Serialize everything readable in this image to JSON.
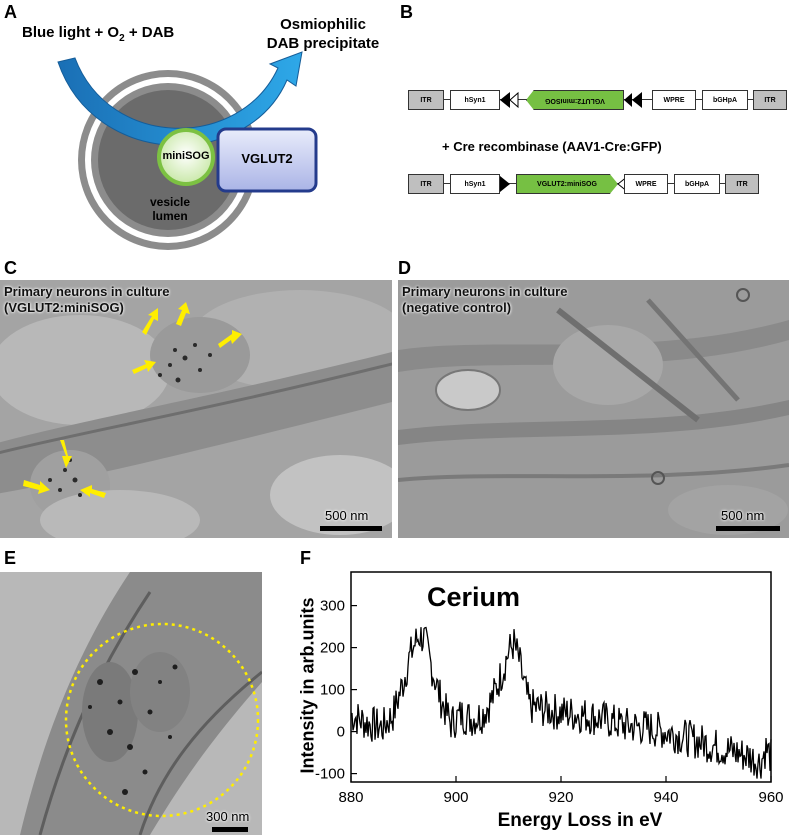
{
  "panel_labels": [
    "A",
    "B",
    "C",
    "D",
    "E",
    "F"
  ],
  "panel_a": {
    "blue_light_text": "Blue light + O",
    "o2_subscript": "2",
    "dab_text": " + DAB",
    "osmio_line1": "Osmiophilic",
    "osmio_line2": "DAB precipitate",
    "minisog": "miniSOG",
    "vglut2": "VGLUT2",
    "vesicle_line1": "vesicle",
    "vesicle_line2": "lumen"
  },
  "panel_b": {
    "construct1": [
      "ITR",
      "hSyn1",
      "VGLUT2:miniSOG",
      "WPRE",
      "bGHpA",
      "ITR"
    ],
    "cre_text": "+ Cre recombinase (AAV1-Cre:GFP)",
    "construct2": [
      "ITR",
      "hSyn1",
      "VGLUT2:miniSOG",
      "WPRE",
      "bGHpA",
      "ITR"
    ],
    "colors": {
      "minisog_green": "#76c043",
      "itr_grey": "#bfbfbf"
    }
  },
  "panel_c": {
    "caption_line1": "Primary neurons in culture",
    "caption_line2": "(VGLUT2:miniSOG)",
    "scalebar": "500 nm",
    "arrow_color": "#ffee00"
  },
  "panel_d": {
    "caption_line1": "Primary neurons in culture",
    "caption_line2": "(negative control)",
    "scalebar": "500 nm"
  },
  "panel_e": {
    "scalebar": "300 nm",
    "circle_color": "#ffee00"
  },
  "chart_data": {
    "type": "line",
    "annotation": "Cerium",
    "xlabel": "Energy Loss in eV",
    "ylabel": "Intensity in arb.units",
    "xlim": [
      880,
      960
    ],
    "ylim": [
      -120,
      380
    ],
    "xticks": [
      880,
      900,
      920,
      940,
      960
    ],
    "yticks": [
      -100,
      0,
      100,
      200,
      300
    ],
    "series": [
      {
        "x": [
          880,
          883,
          886,
          888,
          890,
          891,
          892,
          893,
          894,
          895,
          897,
          899,
          901,
          903,
          905,
          907,
          909,
          910,
          911,
          912,
          913,
          914,
          916,
          918,
          920,
          924,
          928,
          932,
          936,
          940,
          944,
          948,
          952,
          956,
          958,
          959,
          960
        ],
        "y": [
          40,
          20,
          10,
          40,
          120,
          170,
          205,
          230,
          220,
          170,
          80,
          20,
          40,
          30,
          40,
          80,
          150,
          190,
          210,
          170,
          110,
          60,
          55,
          50,
          45,
          40,
          30,
          15,
          10,
          0,
          -15,
          -30,
          -45,
          -60,
          -75,
          -40,
          -60
        ]
      }
    ]
  }
}
